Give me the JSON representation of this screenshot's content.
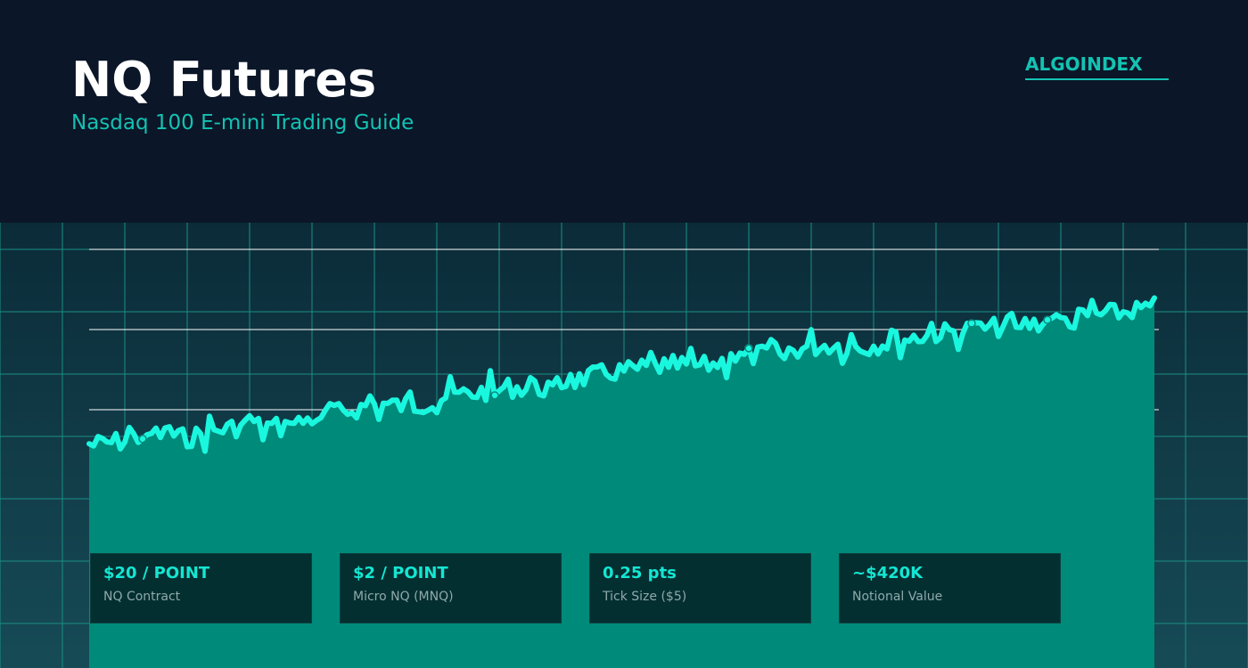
{
  "header": {
    "title": "NQ Futures",
    "subtitle": "Nasdaq 100 E-mini Trading Guide",
    "brand": "ALGOINDEX"
  },
  "colors": {
    "background": "#0b1628",
    "accent": "#14c2b2",
    "line": "#1af7df",
    "area_fill": "#008a7a",
    "card_bg": "#042f31"
  },
  "chart_data": {
    "type": "area",
    "title": "",
    "xlabel": "",
    "ylabel": "",
    "grid": true,
    "series": [
      {
        "values": [
          0.0,
          0.03,
          0.09,
          0.05,
          0.11,
          0.15,
          0.13,
          0.2,
          0.25,
          0.3,
          0.28,
          0.35,
          0.38,
          0.42,
          0.41,
          0.47,
          0.52,
          0.55,
          0.58,
          0.57,
          0.63,
          0.66,
          0.7,
          0.73,
          0.71,
          0.76,
          0.8,
          0.83,
          0.85,
          0.88,
          0.9,
          0.94,
          0.96,
          1.0
        ]
      }
    ],
    "markers": [
      0.05,
      0.38,
      0.62,
      0.83,
      0.9
    ]
  },
  "stats": [
    {
      "value": "$20 / POINT",
      "label": "NQ Contract"
    },
    {
      "value": "$2 / POINT",
      "label": "Micro NQ (MNQ)"
    },
    {
      "value": "0.25 pts",
      "label": "Tick Size ($5)"
    },
    {
      "value": "~$420K",
      "label": "Notional Value"
    }
  ]
}
